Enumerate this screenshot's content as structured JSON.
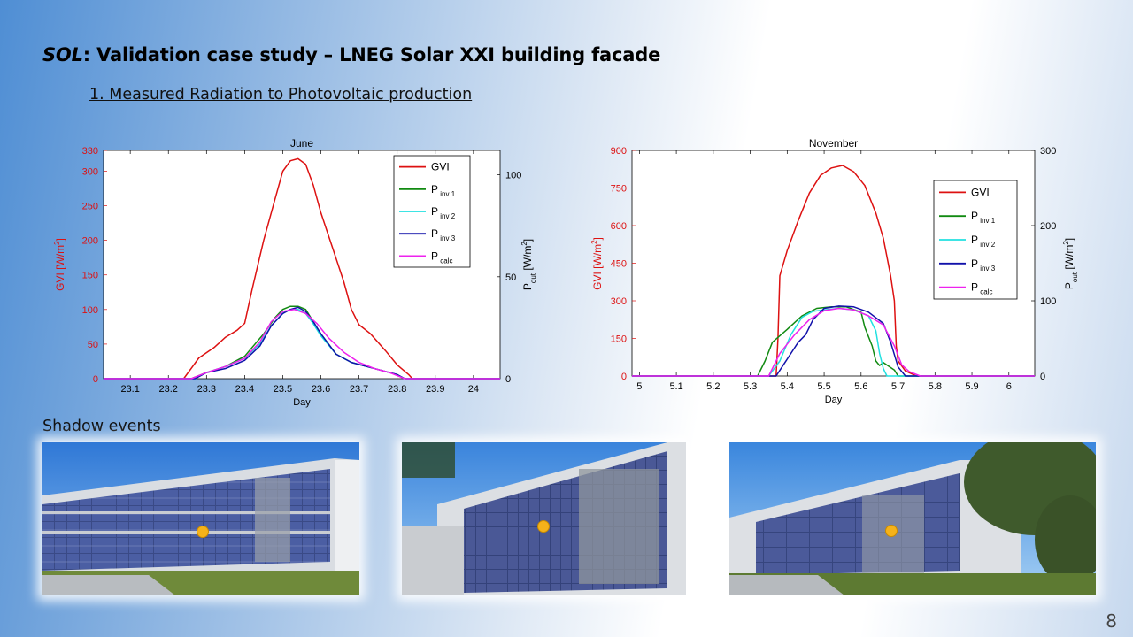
{
  "slide": {
    "title_italic": "SOL",
    "title_rest": ": Validation case study – LNEG Solar XXI building facade",
    "subtitle": "1. Measured Radiation to Photovoltaic production",
    "shadow_heading": "Shadow events",
    "page_number": "8"
  },
  "colors": {
    "GVI": "#dd1111",
    "P_inv1": "#118a11",
    "P_inv2": "#22e0e0",
    "P_inv3": "#1111aa",
    "P_calc": "#ee22ee"
  },
  "chart_data": [
    {
      "type": "line",
      "title": "June",
      "xlabel": "Day",
      "ylabel_left": "GVI [W/m2]",
      "ylabel_right": "P_out [W/m2]",
      "xlim": [
        23.03,
        24.07
      ],
      "ylim_left": [
        0,
        330
      ],
      "ylim_right": [
        0,
        112
      ],
      "xticks": [
        23.1,
        23.2,
        23.3,
        23.4,
        23.5,
        23.6,
        23.7,
        23.8,
        23.9,
        24
      ],
      "yticks_left": [
        0,
        50,
        100,
        150,
        200,
        250,
        300,
        330
      ],
      "yticks_right": [
        0,
        50,
        100
      ],
      "grid": false,
      "legend_position": "top-right",
      "series": [
        {
          "name": "GVI",
          "axis": "left",
          "color_key": "GVI",
          "x": [
            23.03,
            23.24,
            23.26,
            23.28,
            23.32,
            23.35,
            23.38,
            23.4,
            23.42,
            23.45,
            23.48,
            23.5,
            23.52,
            23.54,
            23.56,
            23.58,
            23.6,
            23.63,
            23.66,
            23.68,
            23.7,
            23.73,
            23.77,
            23.8,
            23.83,
            23.84,
            24.07
          ],
          "y": [
            0,
            0,
            15,
            30,
            45,
            60,
            70,
            80,
            130,
            200,
            260,
            300,
            315,
            318,
            310,
            280,
            240,
            190,
            140,
            100,
            78,
            65,
            40,
            20,
            6,
            0,
            0
          ]
        },
        {
          "name": "P inv 1",
          "axis": "right",
          "color_key": "P_inv1",
          "x": [
            23.03,
            23.26,
            23.3,
            23.35,
            23.4,
            23.45,
            23.48,
            23.5,
            23.52,
            23.54,
            23.56,
            23.58,
            23.6,
            23.64,
            23.68,
            23.72,
            23.76,
            23.8,
            23.82,
            24.07
          ],
          "y": [
            0,
            0,
            3,
            6,
            11,
            22,
            30,
            34,
            35.5,
            35.5,
            34,
            28,
            22,
            12,
            8,
            6,
            4,
            2,
            0,
            0
          ]
        },
        {
          "name": "P inv 2",
          "axis": "right",
          "color_key": "P_inv2",
          "x": [
            23.03,
            23.27,
            23.3,
            23.35,
            23.4,
            23.44,
            23.47,
            23.5,
            23.52,
            23.54,
            23.56,
            23.58,
            23.6,
            23.64,
            23.68,
            23.72,
            23.76,
            23.8,
            23.82,
            24.07
          ],
          "y": [
            0,
            0,
            3,
            6,
            10,
            17,
            26,
            32,
            34,
            34,
            32,
            27,
            21,
            12,
            8,
            6,
            4,
            2,
            0,
            0
          ]
        },
        {
          "name": "P inv 3",
          "axis": "right",
          "color_key": "P_inv3",
          "x": [
            23.03,
            23.27,
            23.3,
            23.35,
            23.4,
            23.44,
            23.47,
            23.5,
            23.52,
            23.54,
            23.56,
            23.58,
            23.6,
            23.64,
            23.68,
            23.72,
            23.76,
            23.8,
            23.82,
            24.07
          ],
          "y": [
            0,
            0,
            3,
            5,
            9,
            16,
            26,
            32,
            34,
            35,
            33,
            28,
            22,
            12,
            8,
            6,
            4,
            2,
            0,
            0
          ]
        },
        {
          "name": "P calc",
          "axis": "right",
          "color_key": "P_calc",
          "x": [
            23.03,
            23.26,
            23.3,
            23.35,
            23.4,
            23.44,
            23.47,
            23.5,
            23.53,
            23.56,
            23.59,
            23.62,
            23.66,
            23.7,
            23.74,
            23.78,
            23.82,
            24.07
          ],
          "y": [
            0,
            0,
            3,
            6,
            10,
            18,
            28,
            33,
            34,
            32,
            27,
            20,
            13,
            8,
            5,
            3,
            0,
            0
          ]
        }
      ],
      "legend": [
        "GVI",
        "P inv 1",
        "P inv 2",
        "P inv 3",
        "P calc"
      ]
    },
    {
      "type": "line",
      "title": "November",
      "xlabel": "Day",
      "ylabel_left": "GVI [W/m2]",
      "ylabel_right": "P_out [W/m2]",
      "xlim": [
        4.98,
        6.07
      ],
      "ylim_left": [
        0,
        900
      ],
      "ylim_right": [
        0,
        300
      ],
      "xticks": [
        5,
        5.1,
        5.2,
        5.3,
        5.4,
        5.5,
        5.6,
        5.7,
        5.8,
        5.9,
        6
      ],
      "yticks_left": [
        0,
        150,
        300,
        450,
        600,
        750,
        900
      ],
      "yticks_right": [
        0,
        100,
        200,
        300
      ],
      "grid": false,
      "legend_position": "top-right",
      "series": [
        {
          "name": "GVI",
          "axis": "left",
          "color_key": "GVI",
          "x": [
            4.98,
            5.37,
            5.375,
            5.38,
            5.4,
            5.43,
            5.46,
            5.49,
            5.52,
            5.55,
            5.58,
            5.61,
            5.64,
            5.66,
            5.68,
            5.69,
            5.695,
            5.7,
            5.72,
            5.75,
            6.07
          ],
          "y": [
            0,
            0,
            150,
            400,
            500,
            620,
            730,
            800,
            830,
            840,
            815,
            760,
            650,
            550,
            400,
            300,
            120,
            60,
            20,
            0,
            0
          ]
        },
        {
          "name": "P inv 1",
          "axis": "right",
          "color_key": "P_inv1",
          "x": [
            4.98,
            5.32,
            5.34,
            5.36,
            5.4,
            5.44,
            5.48,
            5.52,
            5.56,
            5.6,
            5.61,
            5.63,
            5.64,
            5.65,
            5.66,
            5.69,
            5.7,
            6.07
          ],
          "y": [
            0,
            0,
            20,
            45,
            62,
            80,
            90,
            92,
            92,
            85,
            65,
            40,
            20,
            14,
            18,
            8,
            0,
            0
          ]
        },
        {
          "name": "P inv 2",
          "axis": "right",
          "color_key": "P_inv2",
          "x": [
            4.98,
            5.35,
            5.38,
            5.41,
            5.44,
            5.47,
            5.5,
            5.54,
            5.58,
            5.62,
            5.64,
            5.65,
            5.66,
            5.67,
            6.07
          ],
          "y": [
            0,
            0,
            20,
            55,
            78,
            86,
            88,
            90,
            88,
            80,
            60,
            30,
            10,
            0,
            0
          ]
        },
        {
          "name": "P inv 3",
          "axis": "right",
          "color_key": "P_inv3",
          "x": [
            4.98,
            5.37,
            5.39,
            5.41,
            5.43,
            5.45,
            5.47,
            5.5,
            5.54,
            5.58,
            5.62,
            5.66,
            5.68,
            5.7,
            5.72,
            6.07
          ],
          "y": [
            0,
            0,
            15,
            30,
            45,
            55,
            75,
            90,
            93,
            92,
            85,
            70,
            45,
            12,
            0,
            0
          ]
        },
        {
          "name": "P calc",
          "axis": "right",
          "color_key": "P_calc",
          "x": [
            4.98,
            5.35,
            5.38,
            5.42,
            5.46,
            5.5,
            5.54,
            5.58,
            5.62,
            5.66,
            5.69,
            5.71,
            5.73,
            5.76,
            6.07
          ],
          "y": [
            0,
            0,
            30,
            55,
            75,
            87,
            90,
            88,
            80,
            68,
            40,
            15,
            6,
            0,
            0
          ]
        }
      ],
      "legend": [
        "GVI",
        "P inv 1",
        "P inv 2",
        "P inv 3",
        "P calc"
      ]
    }
  ],
  "photos": [
    {
      "name": "building-photo-1",
      "caption": ""
    },
    {
      "name": "building-photo-2",
      "caption": ""
    },
    {
      "name": "building-photo-3",
      "caption": ""
    }
  ]
}
